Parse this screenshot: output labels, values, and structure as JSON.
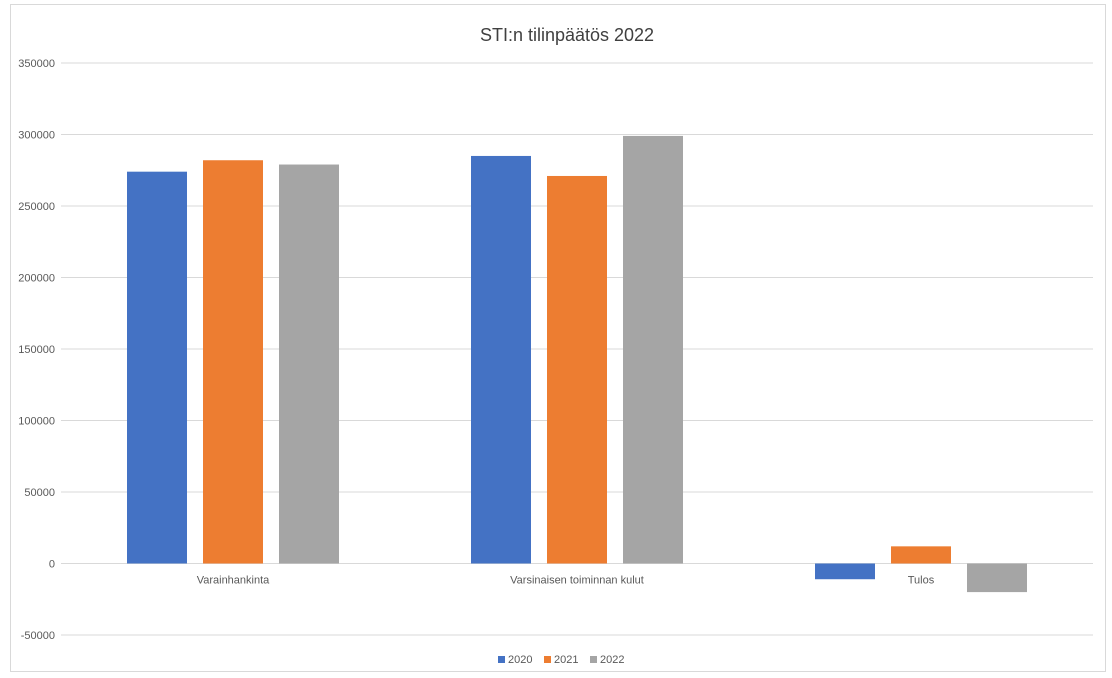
{
  "chart_data": {
    "type": "bar",
    "title": "STI:n tilinpäätös 2022",
    "xlabel": "",
    "ylabel": "",
    "categories": [
      "Varainhankinta",
      "Varsinaisen toiminnan kulut",
      "Tulos"
    ],
    "series": [
      {
        "name": "2020",
        "color": "#4472c4",
        "values": [
          274000,
          285000,
          -11000
        ]
      },
      {
        "name": "2021",
        "color": "#ed7d31",
        "values": [
          282000,
          271000,
          12000
        ]
      },
      {
        "name": "2022",
        "color": "#a5a5a5",
        "values": [
          279000,
          299000,
          -20000
        ]
      }
    ],
    "ylim": [
      -50000,
      350000
    ],
    "yticks": [
      -50000,
      0,
      50000,
      100000,
      150000,
      200000,
      250000,
      300000,
      350000
    ],
    "ytick_labels": [
      "-50000",
      "0",
      "50000",
      "100000",
      "150000",
      "200000",
      "250000",
      "300000",
      "350000"
    ],
    "grid": true,
    "legend_position": "bottom"
  }
}
